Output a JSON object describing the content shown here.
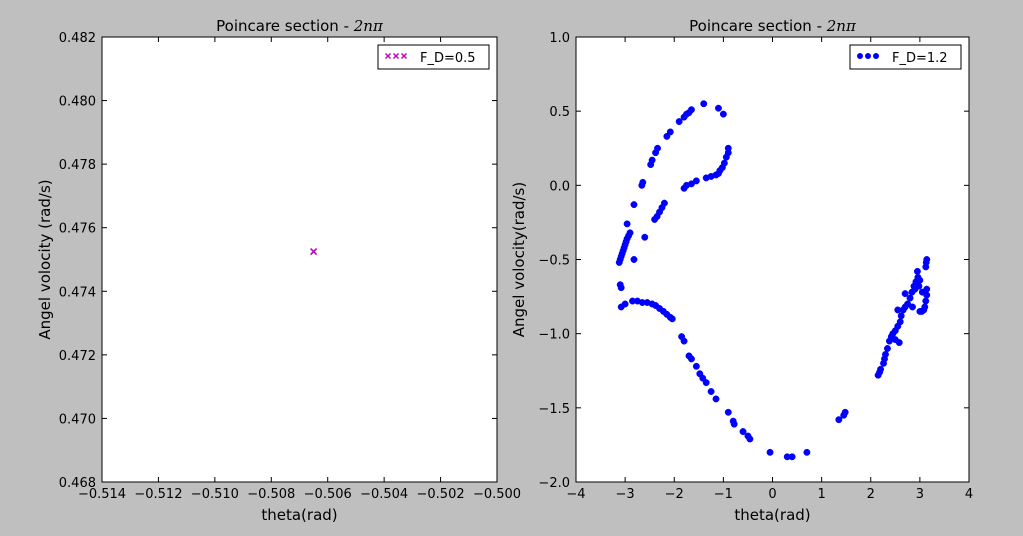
{
  "figure": {
    "background": "#bfbfbf"
  },
  "chart_data": [
    {
      "type": "scatter",
      "title": "Poincare section - 2nπ",
      "title_text": "Poincare section - ",
      "title_math": "2nπ",
      "xlabel": "theta(rad)",
      "ylabel": "Angel volocity (rad/s)",
      "xlim": [
        -0.514,
        -0.5
      ],
      "ylim": [
        0.468,
        0.482
      ],
      "xticks": [
        -0.514,
        -0.512,
        -0.51,
        -0.508,
        -0.506,
        -0.504,
        -0.502,
        -0.5
      ],
      "xtick_labels": [
        "−0.514",
        "−0.512",
        "−0.510",
        "−0.508",
        "−0.506",
        "−0.504",
        "−0.502",
        "−0.500"
      ],
      "yticks": [
        0.468,
        0.47,
        0.472,
        0.474,
        0.476,
        0.478,
        0.48,
        0.482
      ],
      "ytick_labels": [
        "0.468",
        "0.470",
        "0.472",
        "0.474",
        "0.476",
        "0.478",
        "0.480",
        "0.482"
      ],
      "grid": false,
      "legend_position": "top-right",
      "series": [
        {
          "name": "F_D=0.5",
          "marker": "x",
          "color": "#bf00bf",
          "points": [
            [
              -0.5065,
              0.47525
            ]
          ]
        }
      ]
    },
    {
      "type": "scatter",
      "title": "Poincare section - 2nπ",
      "title_text": "Poincare section - ",
      "title_math": "2nπ",
      "xlabel": "theta(rad)",
      "ylabel": "Angel volocity(rad/s)",
      "xlim": [
        -4,
        4
      ],
      "ylim": [
        -2.0,
        1.0
      ],
      "xticks": [
        -4,
        -3,
        -2,
        -1,
        0,
        1,
        2,
        3,
        4
      ],
      "xtick_labels": [
        "−4",
        "−3",
        "−2",
        "−1",
        "0",
        "1",
        "2",
        "3",
        "4"
      ],
      "yticks": [
        -2.0,
        -1.5,
        -1.0,
        -0.5,
        0.0,
        0.5,
        1.0
      ],
      "ytick_labels": [
        "−2.0",
        "−1.5",
        "−1.0",
        "−0.5",
        "0.0",
        "0.5",
        "1.0"
      ],
      "grid": false,
      "legend_position": "top-right",
      "series": [
        {
          "name": "F_D=1.2",
          "marker": "o",
          "color": "#0000ff",
          "points": [
            [
              -3.12,
              -0.52
            ],
            [
              -3.1,
              -0.5
            ],
            [
              -3.08,
              -0.48
            ],
            [
              -3.06,
              -0.46
            ],
            [
              -3.04,
              -0.44
            ],
            [
              -3.02,
              -0.42
            ],
            [
              -3.0,
              -0.4
            ],
            [
              -2.98,
              -0.38
            ],
            [
              -2.96,
              -0.36
            ],
            [
              -2.93,
              -0.34
            ],
            [
              -2.9,
              -0.32
            ],
            [
              -2.96,
              -0.26
            ],
            [
              -3.1,
              -0.67
            ],
            [
              -3.08,
              -0.69
            ],
            [
              -2.82,
              -0.13
            ],
            [
              -2.66,
              0.0
            ],
            [
              -2.64,
              0.02
            ],
            [
              -2.48,
              0.14
            ],
            [
              -2.45,
              0.17
            ],
            [
              -2.38,
              0.22
            ],
            [
              -2.34,
              0.25
            ],
            [
              -2.15,
              0.33
            ],
            [
              -2.08,
              0.36
            ],
            [
              -1.9,
              0.43
            ],
            [
              -1.8,
              0.46
            ],
            [
              -1.75,
              0.48
            ],
            [
              -1.7,
              0.49
            ],
            [
              -1.65,
              0.51
            ],
            [
              -1.4,
              0.55
            ],
            [
              -1.1,
              0.52
            ],
            [
              -1.0,
              0.48
            ],
            [
              -0.9,
              0.25
            ],
            [
              -0.9,
              0.22
            ],
            [
              -0.94,
              0.19
            ],
            [
              -0.98,
              0.15
            ],
            [
              -1.02,
              0.12
            ],
            [
              -1.07,
              0.1
            ],
            [
              -1.1,
              0.08
            ],
            [
              -1.15,
              0.07
            ],
            [
              -1.25,
              0.06
            ],
            [
              -1.35,
              0.05
            ],
            [
              -1.55,
              0.03
            ],
            [
              -1.65,
              0.01
            ],
            [
              -1.75,
              0.0
            ],
            [
              -1.8,
              -0.02
            ],
            [
              -2.2,
              -0.12
            ],
            [
              -2.25,
              -0.15
            ],
            [
              -2.3,
              -0.18
            ],
            [
              -2.35,
              -0.21
            ],
            [
              -2.4,
              -0.23
            ],
            [
              -2.6,
              -0.35
            ],
            [
              -2.82,
              -0.5
            ],
            [
              -3.0,
              -0.8
            ],
            [
              -3.08,
              -0.82
            ],
            [
              -2.85,
              -0.78
            ],
            [
              -2.75,
              -0.78
            ],
            [
              -2.65,
              -0.79
            ],
            [
              -2.55,
              -0.79
            ],
            [
              -2.45,
              -0.8
            ],
            [
              -2.38,
              -0.81
            ],
            [
              -2.3,
              -0.83
            ],
            [
              -2.22,
              -0.85
            ],
            [
              -2.15,
              -0.87
            ],
            [
              -2.08,
              -0.89
            ],
            [
              -2.04,
              -0.9
            ],
            [
              -1.85,
              -1.02
            ],
            [
              -1.8,
              -1.05
            ],
            [
              -1.7,
              -1.15
            ],
            [
              -1.65,
              -1.17
            ],
            [
              -1.55,
              -1.22
            ],
            [
              -1.48,
              -1.27
            ],
            [
              -1.42,
              -1.3
            ],
            [
              -1.35,
              -1.33
            ],
            [
              -1.25,
              -1.39
            ],
            [
              -1.15,
              -1.44
            ],
            [
              -0.9,
              -1.53
            ],
            [
              -0.8,
              -1.59
            ],
            [
              -0.78,
              -1.61
            ],
            [
              -0.6,
              -1.66
            ],
            [
              -0.5,
              -1.69
            ],
            [
              -0.46,
              -1.71
            ],
            [
              -0.05,
              -1.8
            ],
            [
              0.3,
              -1.83
            ],
            [
              0.4,
              -1.83
            ],
            [
              0.7,
              -1.8
            ],
            [
              1.35,
              -1.58
            ],
            [
              1.45,
              -1.55
            ],
            [
              1.48,
              -1.53
            ],
            [
              2.15,
              -1.28
            ],
            [
              2.18,
              -1.26
            ],
            [
              2.2,
              -1.24
            ],
            [
              2.26,
              -1.2
            ],
            [
              2.28,
              -1.17
            ],
            [
              2.3,
              -1.14
            ],
            [
              2.34,
              -1.1
            ],
            [
              2.38,
              -1.05
            ],
            [
              2.42,
              -1.02
            ],
            [
              2.45,
              -1.0
            ],
            [
              2.5,
              -0.98
            ],
            [
              2.55,
              -0.95
            ],
            [
              2.6,
              -0.92
            ],
            [
              2.62,
              -0.88
            ],
            [
              2.66,
              -0.84
            ],
            [
              2.7,
              -0.82
            ],
            [
              2.75,
              -0.8
            ],
            [
              2.8,
              -0.76
            ],
            [
              2.84,
              -0.72
            ],
            [
              2.88,
              -0.68
            ],
            [
              2.92,
              -0.65
            ],
            [
              2.96,
              -0.62
            ],
            [
              3.0,
              -0.85
            ],
            [
              3.04,
              -0.85
            ],
            [
              3.08,
              -0.84
            ],
            [
              3.1,
              -0.82
            ],
            [
              3.12,
              -0.78
            ],
            [
              3.14,
              -0.74
            ],
            [
              3.14,
              -0.7
            ],
            [
              3.12,
              -0.55
            ],
            [
              3.13,
              -0.52
            ],
            [
              3.14,
              -0.5
            ],
            [
              2.95,
              -0.58
            ],
            [
              3.0,
              -0.64
            ],
            [
              2.98,
              -0.68
            ],
            [
              2.9,
              -0.7
            ],
            [
              2.85,
              -0.82
            ],
            [
              2.7,
              -0.73
            ],
            [
              2.55,
              -0.84
            ],
            [
              3.05,
              -0.72
            ],
            [
              2.5,
              -1.04
            ],
            [
              2.58,
              -1.06
            ]
          ]
        }
      ]
    }
  ]
}
